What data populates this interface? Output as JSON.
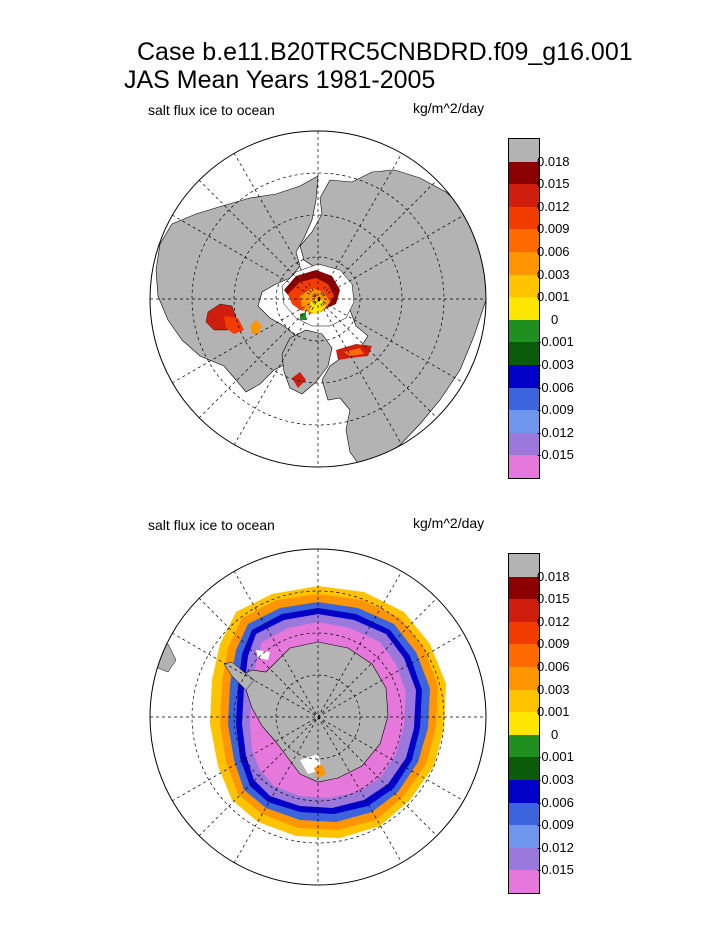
{
  "page": {
    "title_line1": "Case b.e11.B20TRC5CNBDRD.f09_g16.001",
    "title_line2": "JAS Mean   Years 1981-2005"
  },
  "panels": [
    {
      "label": "salt flux ice to ocean",
      "units": "kg/m^2/day",
      "hemisphere": "north"
    },
    {
      "label": "salt flux ice to ocean",
      "units": "kg/m^2/day",
      "hemisphere": "south"
    }
  ],
  "colors": {
    "land": "#b3b3b3",
    "bands": [
      "#b3b3b3",
      "#8b0000",
      "#d01e0e",
      "#f23c00",
      "#ff6a00",
      "#ff9500",
      "#ffc300",
      "#ffe600",
      "#1f8f1f",
      "#0a5c0a",
      "#0000c8",
      "#3c64dc",
      "#6e96ea",
      "#9a78dc",
      "#e678dc"
    ]
  },
  "chart_data": [
    {
      "type": "heatmap",
      "projection": "north polar stereographic",
      "title": "salt flux ice to ocean",
      "units": "kg/m^2/day",
      "colorbar_levels": [
        "0.018",
        "0.015",
        "0.012",
        "0.009",
        "0.006",
        "0.003",
        "0.001",
        "0",
        "-0.001",
        "-0.003",
        "-0.006",
        "-0.009",
        "-0.012",
        "-0.015"
      ]
    },
    {
      "type": "heatmap",
      "projection": "south polar stereographic",
      "title": "salt flux ice to ocean",
      "units": "kg/m^2/day",
      "colorbar_levels": [
        "0.018",
        "0.015",
        "0.012",
        "0.009",
        "0.006",
        "0.003",
        "0.001",
        "0",
        "-0.001",
        "-0.003",
        "-0.006",
        "-0.009",
        "-0.012",
        "-0.015"
      ]
    }
  ]
}
